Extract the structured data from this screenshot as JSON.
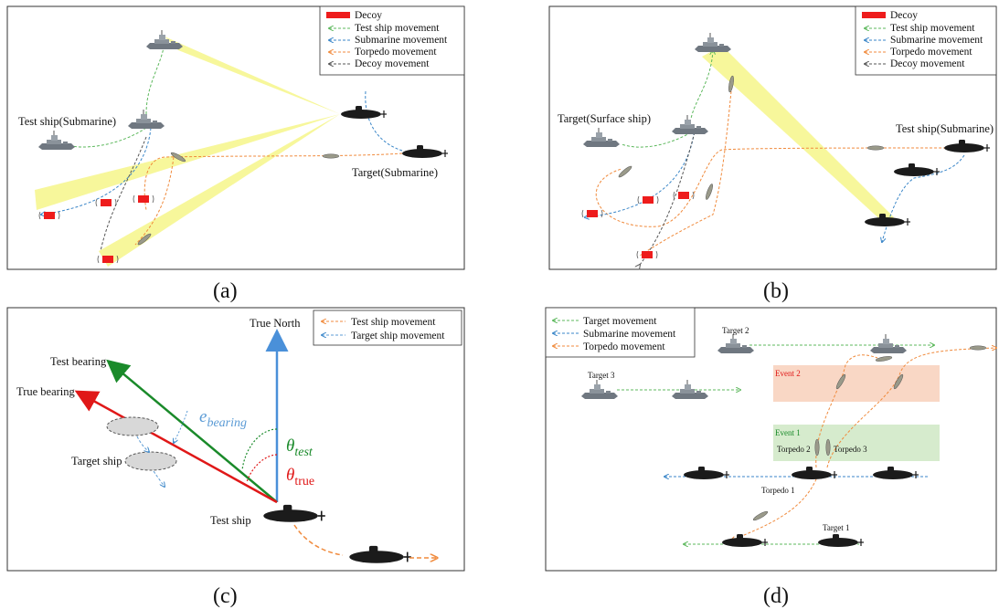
{
  "colors": {
    "test_ship": "#5cb85c",
    "submarine": "#3a86c8",
    "torpedo": "#f08a3c",
    "decoy_move": "#555555",
    "decoy": "#ee1c1c",
    "beam": "#f4f47a",
    "true_north": "#4a90d9",
    "test_bearing": "#1a8a2a",
    "true_bearing": "#e01818",
    "event1_bg": "#cfe8c4",
    "event2_bg": "#f7cdb6",
    "theta_test": "#1a8a2a",
    "theta_true": "#e01818",
    "e_bearing": "#5b9bd5"
  },
  "panel_a": {
    "caption": "(a)",
    "legend": {
      "decoy": "Decoy",
      "test_ship": "Test ship movement",
      "submarine": "Submarine movement",
      "torpedo": "Torpedo movement",
      "decoy_move": "Decoy movement"
    },
    "labels": {
      "test_ship": "Test ship(Submarine)",
      "target": "Target(Submarine)"
    }
  },
  "panel_b": {
    "caption": "(b)",
    "legend": {
      "decoy": "Decoy",
      "test_ship": "Test ship movement",
      "submarine": "Submarine movement",
      "torpedo": "Torpedo movement",
      "decoy_move": "Decoy movement"
    },
    "labels": {
      "target": "Target(Surface ship)",
      "test_ship": "Test ship(Submarine)"
    }
  },
  "panel_c": {
    "caption": "(c)",
    "legend": {
      "test_ship": "Test ship movement",
      "target_ship": "Target ship movement"
    },
    "labels": {
      "true_north": "True North",
      "test_bearing": "Test bearing",
      "true_bearing": "True bearing",
      "target_ship": "Target ship",
      "test_ship": "Test ship"
    },
    "symbols": {
      "e_main": "e",
      "e_sub": "bearing",
      "theta_main": "θ",
      "theta_test_sub": "test",
      "theta_true_sub": "true"
    }
  },
  "panel_d": {
    "caption": "(d)",
    "legend": {
      "target": "Target movement",
      "submarine": "Submarine movement",
      "torpedo": "Torpedo movement"
    },
    "labels": {
      "target2": "Target 2",
      "target3": "Target 3",
      "target1": "Target 1",
      "event2": "Event 2",
      "event1": "Event 1",
      "torpedo1": "Torpedo 1",
      "torpedo2": "Torpedo 2",
      "torpedo3": "Torpedo 3"
    }
  }
}
